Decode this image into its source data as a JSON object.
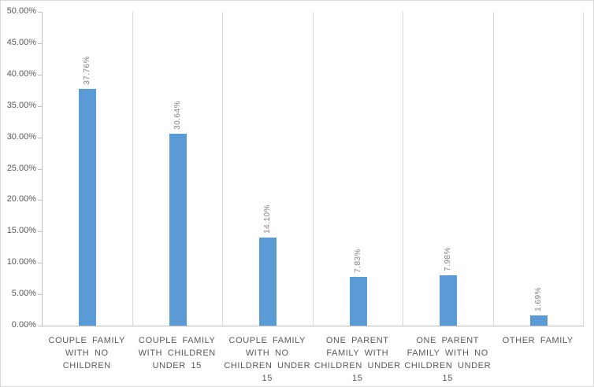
{
  "chart_data": {
    "type": "bar",
    "title": "",
    "xlabel": "",
    "ylabel": "",
    "legend": "none",
    "grid": "vertical-category-separators",
    "ylim": [
      0,
      50
    ],
    "ytick_step": 5,
    "ytick_labels": [
      "0.00%",
      "5.00%",
      "10.00%",
      "15.00%",
      "20.00%",
      "25.00%",
      "30.00%",
      "35.00%",
      "40.00%",
      "45.00%",
      "50.00%"
    ],
    "categories": [
      "COUPLE FAMILY WITH NO CHILDREN",
      "COUPLE FAMILY WITH CHILDREN UNDER 15",
      "COUPLE FAMILY WITH NO CHILDREN UNDER 15",
      "ONE PARENT FAMILY WITH CHILDREN UNDER 15",
      "ONE PARENT FAMILY WITH NO CHILDREN UNDER 15",
      "OTHER FAMILY"
    ],
    "category_label_lines": [
      [
        "COUPLE FAMILY",
        "WITH NO",
        "CHILDREN"
      ],
      [
        "COUPLE FAMILY",
        "WITH CHILDREN",
        "UNDER 15"
      ],
      [
        "COUPLE FAMILY",
        "WITH NO",
        "CHILDREN UNDER",
        "15"
      ],
      [
        "ONE PARENT",
        "FAMILY WITH",
        "CHILDREN UNDER",
        "15"
      ],
      [
        "ONE PARENT",
        "FAMILY WITH NO",
        "CHILDREN UNDER",
        "15"
      ],
      [
        "OTHER FAMILY"
      ]
    ],
    "values": [
      37.76,
      30.64,
      14.1,
      7.83,
      7.98,
      1.69
    ],
    "data_labels": [
      "37.76%",
      "30.64%",
      "14.10%",
      "7.83%",
      "7.98%",
      "1.69%"
    ],
    "colors": {
      "bar": "#5B9BD5",
      "axis_line": "#BFBFBF",
      "separator": "#D9D9D9",
      "chart_border": "#D9D9D9",
      "tick_label": "#595959",
      "category_label": "#595959",
      "data_label": "#808080",
      "background": "#FFFFFF"
    }
  }
}
